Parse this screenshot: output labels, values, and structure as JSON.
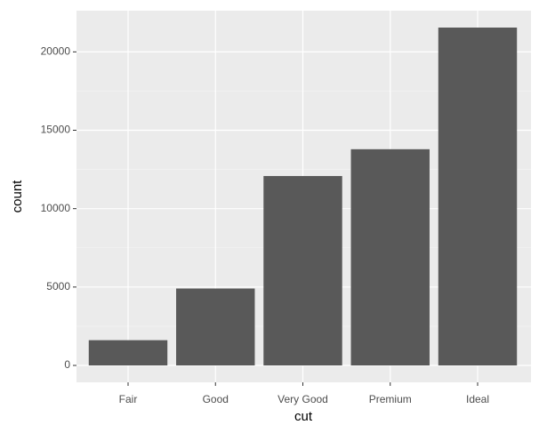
{
  "chart_data": {
    "type": "bar",
    "x_label": "cut",
    "y_label": "count",
    "categories": [
      "Fair",
      "Good",
      "Very Good",
      "Premium",
      "Ideal"
    ],
    "values": [
      1610,
      4906,
      12082,
      13791,
      21551
    ],
    "color": "#595959",
    "ylim": [
      -1077.55,
      22628.55
    ],
    "yticks": [
      0,
      5000,
      10000,
      15000,
      20000
    ],
    "grid": true
  }
}
